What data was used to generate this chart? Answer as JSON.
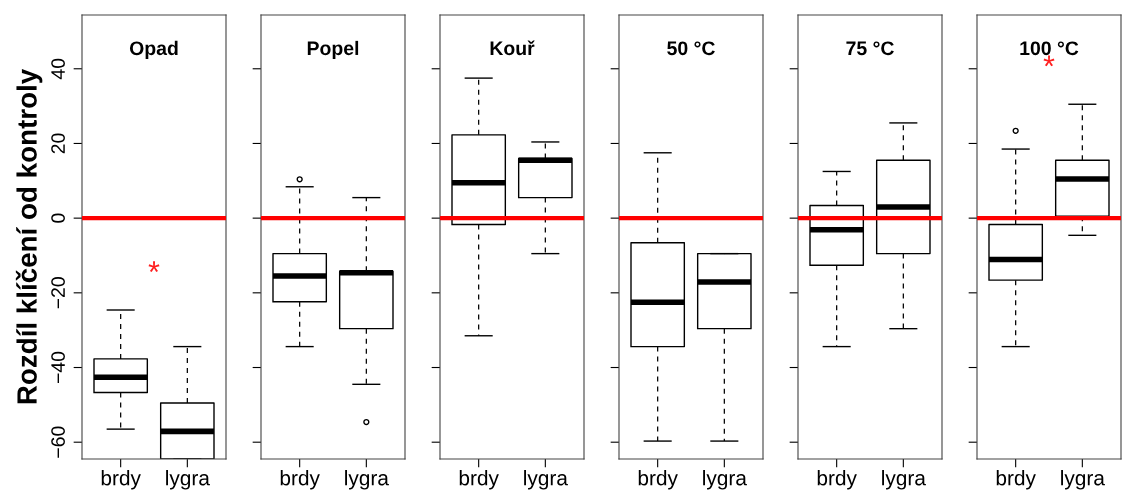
{
  "chart_data": [
    {
      "type": "box",
      "title": "Opad",
      "ylabel": "Rozdíl klíčení od kontroly",
      "categories": [
        "brdy",
        "lygra"
      ],
      "ylim": [
        -64.5,
        54.4
      ],
      "yticks": [
        -60,
        -40,
        -20,
        0,
        20,
        40
      ],
      "grid": false,
      "boxes": [
        {
          "low": -56.5,
          "q1": -46.7,
          "median": -42.6,
          "q3": -37.7,
          "high": -24.6
        },
        {
          "low": -64.5,
          "q1": -64.5,
          "median": -57.1,
          "q3": -49.5,
          "high": -34.4
        }
      ],
      "ref_lines": [
        {
          "axis": "y",
          "value": 0,
          "color": "#ff0000"
        }
      ],
      "annotations": [
        "*"
      ]
    },
    {
      "type": "box",
      "title": "Popel",
      "categories": [
        "brdy",
        "lygra"
      ],
      "ylim": [
        -64.5,
        54.4
      ],
      "yticks": [
        {
          "value": -60,
          "label": null
        },
        {
          "value": -40,
          "label": null
        },
        {
          "value": -20,
          "label": null
        },
        {
          "value": 0,
          "label": null
        },
        {
          "value": 20,
          "label": null
        },
        {
          "value": 40,
          "label": null
        }
      ],
      "grid": false,
      "tick_labels": "x",
      "boxes": [
        {
          "low": -34.4,
          "q1": -22.4,
          "median": -15.5,
          "q3": -9.5,
          "high": 8.4,
          "outliers": [
            10.4
          ]
        },
        {
          "low": -44.5,
          "q1": -29.6,
          "median": -14.6,
          "q3": -14.2,
          "high": 5.5,
          "outliers": [
            -54.6
          ]
        }
      ],
      "ref_lines": [
        {
          "axis": "y",
          "value": 0,
          "color": "#ff0000"
        }
      ]
    },
    {
      "type": "box",
      "title": "Kouř",
      "categories": [
        "brdy",
        "lygra"
      ],
      "ylim": [
        -64.5,
        54.4
      ],
      "yticks": [
        {
          "value": -60,
          "label": null
        },
        {
          "value": -40,
          "label": null
        },
        {
          "value": -20,
          "label": null
        },
        {
          "value": 0,
          "label": null
        },
        {
          "value": 20,
          "label": null
        },
        {
          "value": 40,
          "label": null
        }
      ],
      "grid": false,
      "tick_labels": "x",
      "boxes": [
        {
          "low": -31.5,
          "q1": -1.7,
          "median": 9.5,
          "q3": 22.3,
          "high": 37.5
        },
        {
          "low": -9.5,
          "q1": 5.5,
          "median": 15.5,
          "q3": 16.0,
          "high": 20.4
        }
      ],
      "ref_lines": [
        {
          "axis": "y",
          "value": 0,
          "color": "#ff0000"
        }
      ]
    },
    {
      "type": "box",
      "title": "50 °C",
      "categories": [
        "brdy",
        "lygra"
      ],
      "ylim": [
        -64.5,
        54.4
      ],
      "yticks": [
        {
          "value": -60,
          "label": null
        },
        {
          "value": -40,
          "label": null
        },
        {
          "value": -20,
          "label": null
        },
        {
          "value": 0,
          "label": null
        },
        {
          "value": 20,
          "label": null
        },
        {
          "value": 40,
          "label": null
        }
      ],
      "grid": false,
      "tick_labels": "x",
      "boxes": [
        {
          "low": -59.7,
          "q1": -34.4,
          "median": -22.5,
          "q3": -6.6,
          "high": 17.5
        },
        {
          "low": -59.7,
          "q1": -29.6,
          "median": -17.1,
          "q3": -9.5,
          "high": -9.5
        }
      ],
      "ref_lines": [
        {
          "axis": "y",
          "value": 0,
          "color": "#ff0000"
        }
      ]
    },
    {
      "type": "box",
      "title": "75 °C",
      "categories": [
        "brdy",
        "lygra"
      ],
      "ylim": [
        -64.5,
        54.4
      ],
      "yticks": [
        {
          "value": -60,
          "label": null
        },
        {
          "value": -40,
          "label": null
        },
        {
          "value": -20,
          "label": null
        },
        {
          "value": 0,
          "label": null
        },
        {
          "value": 20,
          "label": null
        },
        {
          "value": 40,
          "label": null
        }
      ],
      "grid": false,
      "tick_labels": "x",
      "boxes": [
        {
          "low": -34.4,
          "q1": -12.6,
          "median": -3.1,
          "q3": 3.4,
          "high": 12.5
        },
        {
          "low": -29.6,
          "q1": -9.5,
          "median": 3.0,
          "q3": 15.5,
          "high": 25.5
        }
      ],
      "ref_lines": [
        {
          "axis": "y",
          "value": 0,
          "color": "#ff0000"
        }
      ]
    },
    {
      "type": "box",
      "title": "100 °C",
      "categories": [
        "brdy",
        "lygra"
      ],
      "ylim": [
        -64.5,
        54.4
      ],
      "yticks": [
        {
          "value": -60,
          "label": null
        },
        {
          "value": -40,
          "label": null
        },
        {
          "value": -20,
          "label": null
        },
        {
          "value": 0,
          "label": null
        },
        {
          "value": 20,
          "label": null
        },
        {
          "value": 40,
          "label": null
        }
      ],
      "grid": false,
      "tick_labels": "x",
      "boxes": [
        {
          "low": -34.4,
          "q1": -16.6,
          "median": -11.1,
          "q3": -1.7,
          "high": 18.5,
          "outliers": [
            23.4
          ]
        },
        {
          "low": -4.6,
          "q1": 0.5,
          "median": 10.5,
          "q3": 15.5,
          "high": 30.5
        }
      ],
      "ref_lines": [
        {
          "axis": "y",
          "value": 0,
          "color": "#ff0000"
        }
      ],
      "annotations": [
        "*"
      ]
    }
  ]
}
